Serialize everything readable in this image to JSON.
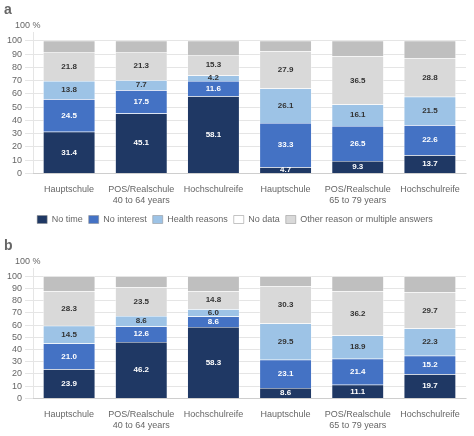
{
  "chart_data": [
    {
      "type": "bar",
      "title": "a",
      "categories": [
        "Hauptschule",
        "POS/Realschule",
        "Hochschulreife",
        "Hauptschule",
        "POS/Realschule",
        "Hochschulreife"
      ],
      "group_labels": [
        "40 to 64 years",
        "65 to 79 years"
      ],
      "annotations": [
        "100 %"
      ],
      "series": [
        {
          "name": "No time",
          "color": "#1f3864",
          "values": [
            31.4,
            45.1,
            58.1,
            4.7,
            9.3,
            13.7
          ]
        },
        {
          "name": "No interest",
          "color": "#4472c4",
          "values": [
            24.5,
            17.5,
            11.6,
            33.3,
            26.5,
            22.6
          ]
        },
        {
          "name": "Health reasons",
          "color": "#9dc3e6",
          "values": [
            13.8,
            7.7,
            4.2,
            26.1,
            16.1,
            21.5
          ]
        },
        {
          "name": "No data",
          "color": "#ffffff",
          "values": [
            0.0,
            0.0,
            0.0,
            0.0,
            0.0,
            0.0
          ]
        },
        {
          "name": "Other reason or multiple answers",
          "color": "#d9d9d9",
          "values": [
            21.8,
            21.3,
            15.3,
            27.9,
            36.5,
            28.8
          ]
        },
        {
          "color": "#bfbfbf",
          "values": [
            8.5,
            8.4,
            10.8,
            8.0,
            11.6,
            13.4
          ],
          "data_labels": false
        }
      ],
      "stacked": true,
      "data_labels": true,
      "grid": true,
      "legend": "bottom",
      "ylim": [
        0,
        106
      ],
      "yticks": [
        0,
        10,
        20,
        30,
        40,
        50,
        60,
        70,
        80,
        90,
        100
      ]
    },
    {
      "type": "bar",
      "title": "b",
      "categories": [
        "Hauptschule",
        "POS/Realschule",
        "Hochschulreife",
        "Hauptschule",
        "POS/Realschule",
        "Hochschulreife"
      ],
      "group_labels": [
        "40 to 64 years",
        "65 to 79 years"
      ],
      "annotations": [
        "100 %"
      ],
      "series": [
        {
          "name": "No time",
          "color": "#1f3864",
          "values": [
            23.9,
            46.2,
            58.3,
            8.6,
            11.1,
            19.7
          ]
        },
        {
          "name": "No interest",
          "color": "#4472c4",
          "values": [
            21.0,
            12.6,
            8.6,
            23.1,
            21.4,
            15.2
          ],
          "value_labels": [
            "21.0",
            "12.6",
            "8.6",
            "23.1",
            "21.4",
            "15.2"
          ]
        },
        {
          "name": "Health reasons",
          "color": "#9dc3e6",
          "values": [
            14.5,
            8.6,
            6.0,
            29.5,
            18.9,
            22.3
          ],
          "value_labels": [
            "14.5",
            "8.6",
            "6.0",
            "29.5",
            "18.9",
            "22.3"
          ]
        },
        {
          "name": "No data",
          "color": "#ffffff",
          "values": [
            0.0,
            0.0,
            0.0,
            0.0,
            0.0,
            0.0
          ]
        },
        {
          "name": "Other reason or multiple answers",
          "color": "#d9d9d9",
          "values": [
            28.3,
            23.5,
            14.8,
            30.3,
            36.2,
            29.7
          ]
        },
        {
          "color": "#bfbfbf",
          "values": [
            12.3,
            9.1,
            12.3,
            8.5,
            12.4,
            13.1
          ],
          "data_labels": false
        }
      ],
      "stacked": true,
      "data_labels": true,
      "grid": true,
      "ylim": [
        0,
        106
      ],
      "yticks": [
        0,
        10,
        20,
        30,
        40,
        50,
        60,
        70,
        80,
        90,
        100
      ]
    }
  ]
}
